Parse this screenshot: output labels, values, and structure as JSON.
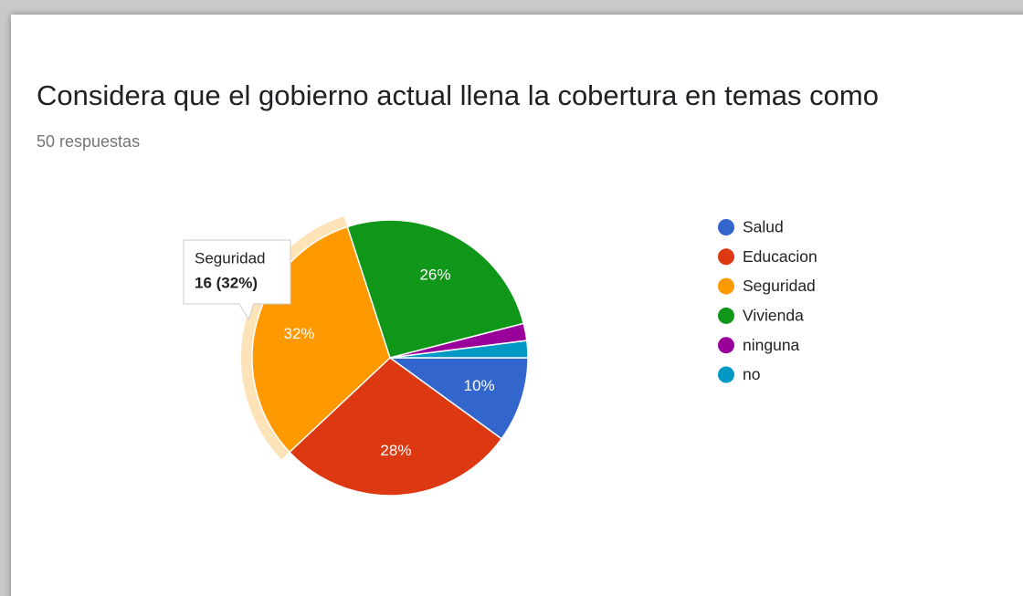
{
  "chart_data": {
    "type": "pie",
    "title": "Considera que el gobierno actual llena la cobertura en temas como",
    "subtitle": "50 respuestas",
    "categories": [
      "Salud",
      "Educacion",
      "Seguridad",
      "Vivienda",
      "ninguna",
      "no"
    ],
    "values": [
      10,
      28,
      32,
      26,
      2,
      2
    ],
    "value_labels": [
      "10%",
      "28%",
      "32%",
      "26%",
      null,
      null
    ],
    "colors": [
      "#3366cc",
      "#dc3912",
      "#ff9900",
      "#109618",
      "#990099",
      "#0099c6"
    ],
    "legend": "right",
    "tooltip_value": "16 (32%)"
  }
}
